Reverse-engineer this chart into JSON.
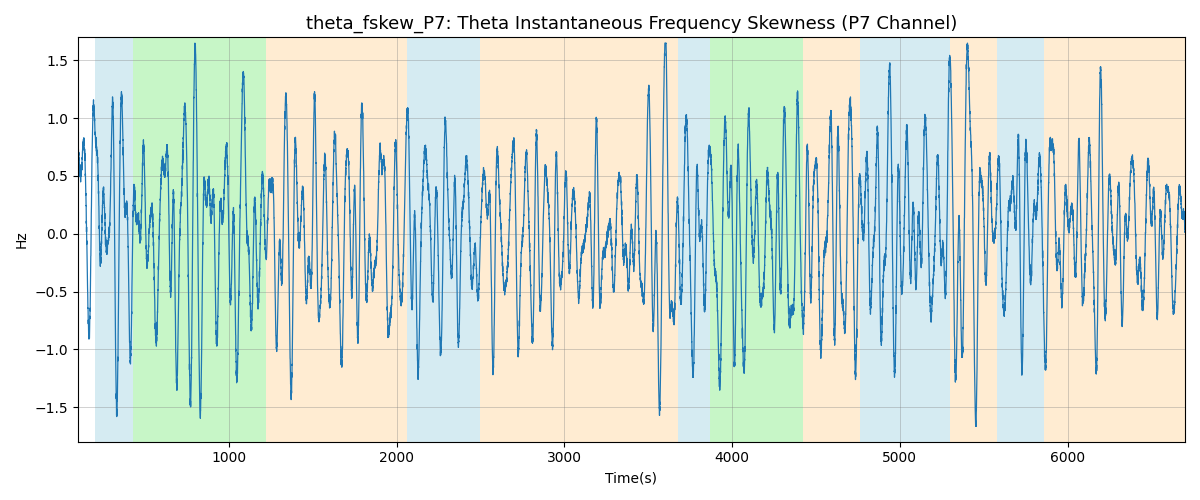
{
  "title": "theta_fskew_P7: Theta Instantaneous Frequency Skewness (P7 Channel)",
  "xlabel": "Time(s)",
  "ylabel": "Hz",
  "xlim": [
    100,
    6700
  ],
  "ylim": [
    -1.8,
    1.7
  ],
  "line_color": "#1f77b4",
  "line_width": 0.9,
  "figsize": [
    12,
    5
  ],
  "dpi": 100,
  "title_fontsize": 13,
  "xticks": [
    1000,
    2000,
    3000,
    4000,
    5000,
    6000
  ],
  "yticks": [
    -1.5,
    -1.0,
    -0.5,
    0.0,
    0.5,
    1.0,
    1.5
  ],
  "bands": [
    {
      "start": 200,
      "end": 430,
      "color": "#add8e6",
      "alpha": 0.5
    },
    {
      "start": 430,
      "end": 1220,
      "color": "#90ee90",
      "alpha": 0.5
    },
    {
      "start": 1220,
      "end": 2060,
      "color": "#ffdead",
      "alpha": 0.55
    },
    {
      "start": 2060,
      "end": 2500,
      "color": "#add8e6",
      "alpha": 0.5
    },
    {
      "start": 2500,
      "end": 3680,
      "color": "#ffdead",
      "alpha": 0.55
    },
    {
      "start": 3680,
      "end": 3870,
      "color": "#add8e6",
      "alpha": 0.5
    },
    {
      "start": 3870,
      "end": 4420,
      "color": "#90ee90",
      "alpha": 0.5
    },
    {
      "start": 4420,
      "end": 4760,
      "color": "#ffdead",
      "alpha": 0.55
    },
    {
      "start": 4760,
      "end": 5300,
      "color": "#add8e6",
      "alpha": 0.5
    },
    {
      "start": 5300,
      "end": 5580,
      "color": "#ffdead",
      "alpha": 0.55
    },
    {
      "start": 5580,
      "end": 5860,
      "color": "#add8e6",
      "alpha": 0.5
    },
    {
      "start": 5860,
      "end": 6700,
      "color": "#ffdead",
      "alpha": 0.55
    }
  ]
}
